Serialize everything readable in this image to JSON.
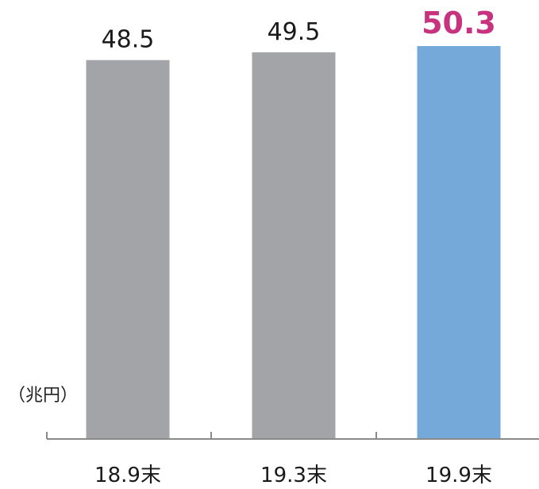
{
  "chart_data": {
    "type": "bar",
    "unit": "（兆円）",
    "categories": [
      "18.9末",
      "19.3末",
      "19.9末"
    ],
    "values": [
      48.5,
      49.5,
      50.3
    ],
    "value_labels": [
      "48.5",
      "49.5",
      "50.3"
    ],
    "bar_colors": [
      "#a3a4a8",
      "#a3a4a8",
      "#74a9da"
    ],
    "label_colors": [
      "#1a1a1a",
      "#1a1a1a",
      "#c8337f"
    ],
    "highlight_index": 2,
    "ylim": [
      0,
      50.3
    ],
    "grid": false,
    "legend": "none"
  }
}
